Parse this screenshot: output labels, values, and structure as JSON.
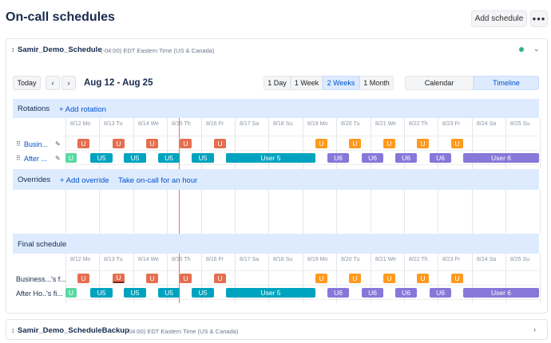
{
  "page": {
    "title": "On-call schedules",
    "add_schedule_label": "Add schedule",
    "more_label": "•••"
  },
  "schedule1": {
    "name": "Samir_Demo_Schedule",
    "timezone": "(-04:00) EDT Eastern Time (US & Canada)",
    "status_color": "#36b37e"
  },
  "schedule2": {
    "name": "Samir_Demo_ScheduleBackup",
    "timezone": "(-04:00) EDT Eastern Time (US & Canada)"
  },
  "toolbar": {
    "today_label": "Today",
    "prev_label": "‹",
    "next_label": "›",
    "date_range": "Aug 12 - Aug 25",
    "range_options": [
      "1 Day",
      "1 Week",
      "2 Weeks",
      "1 Month"
    ],
    "range_selected": "2 Weeks",
    "view_options": [
      "Calendar",
      "Timeline"
    ],
    "view_selected": "Timeline"
  },
  "days": [
    "8/12 Mo",
    "8/13 Tu",
    "8/14 We",
    "8/15 Th",
    "8/16 Fr",
    "8/17 Sa",
    "8/18 Su",
    "8/19 Mo",
    "8/20 Tu",
    "8/21 We",
    "8/22 Th",
    "8/23 Fr",
    "8/24 Sa",
    "8/25 Su"
  ],
  "rotations": {
    "title": "Rotations",
    "add_link": "+ Add rotation",
    "rows": [
      {
        "label": "Busin...",
        "blocks": [
          {
            "text": "U",
            "color": "red"
          },
          {
            "text": "U",
            "color": "red"
          },
          {
            "text": "U",
            "color": "red"
          },
          {
            "text": "U",
            "color": "red"
          },
          {
            "text": "U",
            "color": "red"
          },
          {
            "text": "U",
            "color": "orange"
          },
          {
            "text": "U",
            "color": "orange"
          },
          {
            "text": "U",
            "color": "orange"
          },
          {
            "text": "U",
            "color": "orange"
          },
          {
            "text": "U",
            "color": "orange"
          }
        ]
      },
      {
        "label": "After ...",
        "blocks": [
          {
            "text": "U",
            "color": "green"
          },
          {
            "text": "U5",
            "color": "teal"
          },
          {
            "text": "U5",
            "color": "teal"
          },
          {
            "text": "U5",
            "color": "teal"
          },
          {
            "text": "U5",
            "color": "teal"
          },
          {
            "text": "User 5",
            "color": "teal"
          },
          {
            "text": "U6",
            "color": "purple"
          },
          {
            "text": "U6",
            "color": "purple"
          },
          {
            "text": "U6",
            "color": "purple"
          },
          {
            "text": "U6",
            "color": "purple"
          },
          {
            "text": "User 6",
            "color": "purple"
          }
        ]
      }
    ]
  },
  "overrides": {
    "title": "Overrides",
    "add_link": "+ Add override",
    "take_link": "Take on-call for an hour"
  },
  "final": {
    "title": "Final schedule",
    "rows": [
      {
        "label": "Business...'s f...",
        "blocks": [
          {
            "text": "U",
            "color": "red"
          },
          {
            "text": "U",
            "color": "red"
          },
          {
            "text": "U",
            "color": "red"
          },
          {
            "text": "U",
            "color": "red"
          },
          {
            "text": "U",
            "color": "red"
          },
          {
            "text": "U",
            "color": "orange"
          },
          {
            "text": "U",
            "color": "orange"
          },
          {
            "text": "U",
            "color": "orange"
          },
          {
            "text": "U",
            "color": "orange"
          },
          {
            "text": "U",
            "color": "orange"
          }
        ]
      },
      {
        "label": "After Ho..'s fi...",
        "blocks": [
          {
            "text": "U",
            "color": "green"
          },
          {
            "text": "U5",
            "color": "teal"
          },
          {
            "text": "U5",
            "color": "teal"
          },
          {
            "text": "U5",
            "color": "teal"
          },
          {
            "text": "U5",
            "color": "teal"
          },
          {
            "text": "User 5",
            "color": "teal"
          },
          {
            "text": "U6",
            "color": "purple"
          },
          {
            "text": "U6",
            "color": "purple"
          },
          {
            "text": "U6",
            "color": "purple"
          },
          {
            "text": "U6",
            "color": "purple"
          },
          {
            "text": "User 6",
            "color": "purple"
          }
        ]
      }
    ]
  }
}
